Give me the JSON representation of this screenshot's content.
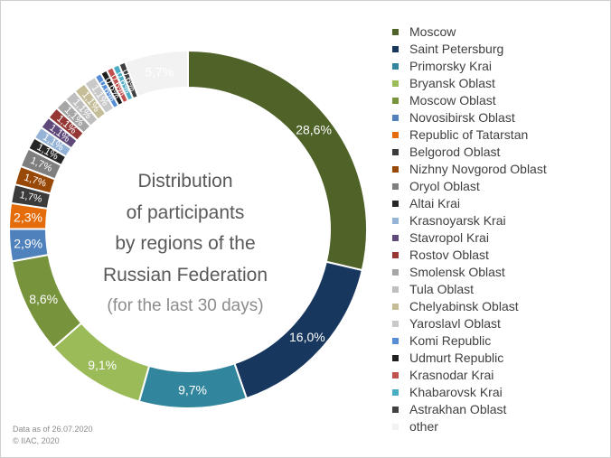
{
  "chart_data": {
    "type": "pie",
    "center_title": [
      "Distribution",
      "of participants",
      "by regions of the",
      "Russian Federation"
    ],
    "center_subtitle": "(for the last 30 days)",
    "footer": [
      "Data as of 26.07.2020",
      "© IIAC, 2020"
    ],
    "legend_position": "right",
    "slices": [
      {
        "label": "Moscow",
        "value": 28.6,
        "display": "28,6%",
        "color": "#4f6228"
      },
      {
        "label": "Saint Petersburg",
        "value": 16.0,
        "display": "16,0%",
        "color": "#17375e"
      },
      {
        "label": "Primorsky Krai",
        "value": 9.7,
        "display": "9,7%",
        "color": "#31859c"
      },
      {
        "label": "Bryansk Oblast",
        "value": 9.1,
        "display": "9,1%",
        "color": "#9bbb59"
      },
      {
        "label": "Moscow Oblast",
        "value": 8.6,
        "display": "8,6%",
        "color": "#77933c"
      },
      {
        "label": "Novosibirsk Oblast",
        "value": 2.9,
        "display": "2,9%",
        "color": "#4f81bd"
      },
      {
        "label": "Republic of Tatarstan",
        "value": 2.3,
        "display": "2,3%",
        "color": "#e46c0a"
      },
      {
        "label": "Belgorod Oblast",
        "value": 1.7,
        "display": "1,7%",
        "color": "#3b3b3b"
      },
      {
        "label": "Nizhny Novgorod Oblast",
        "value": 1.7,
        "display": "1,7%",
        "color": "#984807"
      },
      {
        "label": "Oryol Oblast",
        "value": 1.7,
        "display": "1,7%",
        "color": "#7f7f7f"
      },
      {
        "label": "Altai Krai",
        "value": 1.1,
        "display": "1,1%",
        "color": "#262626"
      },
      {
        "label": "Krasnoyarsk Krai",
        "value": 1.1,
        "display": "1,1%",
        "color": "#95b3d7"
      },
      {
        "label": "Stavropol Krai",
        "value": 1.1,
        "display": "1,1%",
        "color": "#5f497a"
      },
      {
        "label": "Rostov Oblast",
        "value": 1.1,
        "display": "1,1%",
        "color": "#953735"
      },
      {
        "label": "Smolensk Oblast",
        "value": 1.1,
        "display": "1,1%",
        "color": "#a6a6a6"
      },
      {
        "label": "Tula Oblast",
        "value": 1.1,
        "display": "1,1%",
        "color": "#bfbfbf"
      },
      {
        "label": "Chelyabinsk Oblast",
        "value": 1.1,
        "display": "1,1%",
        "color": "#c4bd97"
      },
      {
        "label": "Yaroslavl Oblast",
        "value": 1.1,
        "display": "1,1%",
        "color": "#c9c9c9"
      },
      {
        "label": "Komi Republic",
        "value": 0.6,
        "display": "0,6%",
        "color": "#558ed5"
      },
      {
        "label": "Udmurt Republic",
        "value": 0.6,
        "display": "0,6%",
        "color": "#1f1f1f"
      },
      {
        "label": "Krasnodar Krai",
        "value": 0.6,
        "display": "0,6%",
        "color": "#c0504d"
      },
      {
        "label": "Khabarovsk Krai",
        "value": 0.6,
        "display": "0,6%",
        "color": "#4bacc6"
      },
      {
        "label": "Astrakhan Oblast",
        "value": 0.6,
        "display": "0,6%",
        "color": "#404040"
      },
      {
        "label": "other",
        "value": 5.7,
        "display": "5,7%",
        "color": "#f2f2f2"
      }
    ]
  }
}
